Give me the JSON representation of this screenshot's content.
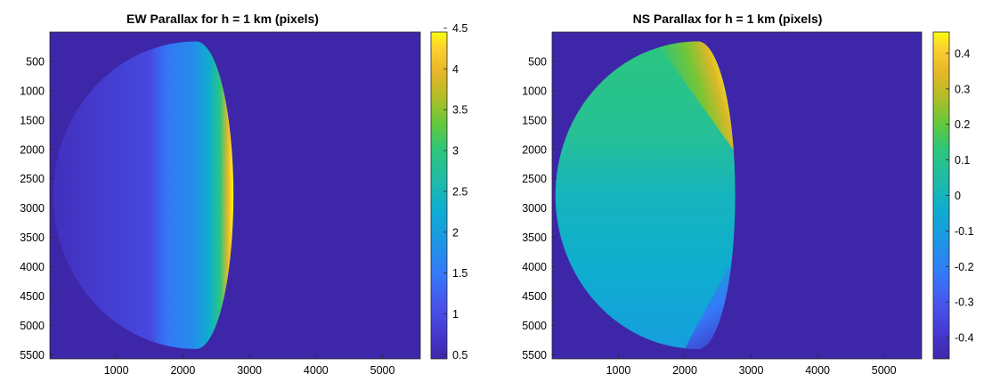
{
  "chart_data": [
    {
      "type": "heatmap",
      "title": "EW Parallax for h = 1 km (pixels)",
      "xlabel": "",
      "ylabel": "",
      "xlim": [
        1,
        5568
      ],
      "ylim": [
        1,
        5568
      ],
      "y_reversed": true,
      "x_ticks": [
        1000,
        2000,
        3000,
        4000,
        5000
      ],
      "y_ticks": [
        500,
        1000,
        1500,
        2000,
        2500,
        3000,
        3500,
        4000,
        4500,
        5000,
        5500
      ],
      "colorbar": {
        "min": 0.45,
        "max": 4.45,
        "ticks": [
          0.5,
          1,
          1.5,
          2,
          2.5,
          3,
          3.5,
          4,
          4.5
        ]
      },
      "background_value": 0.45,
      "disk": {
        "center_x": 2200,
        "center_y": 2780,
        "rx_left": 2150,
        "rx_right": 560,
        "ry": 2620
      },
      "profile": [
        {
          "x": 50,
          "v": 0.62
        },
        {
          "x": 1500,
          "v": 0.95
        },
        {
          "x": 1750,
          "v": 1.45
        },
        {
          "x": 2150,
          "v": 1.75
        },
        {
          "x": 2400,
          "v": 2.3
        },
        {
          "x": 2560,
          "v": 3.0
        },
        {
          "x": 2680,
          "v": 4.0
        },
        {
          "x": 2760,
          "v": 4.45
        }
      ],
      "grid": false,
      "colormap": "parula"
    },
    {
      "type": "heatmap",
      "title": "NS Parallax for h = 1 km (pixels)",
      "xlabel": "",
      "ylabel": "",
      "xlim": [
        1,
        5568
      ],
      "ylim": [
        1,
        5568
      ],
      "y_reversed": true,
      "x_ticks": [
        1000,
        2000,
        3000,
        4000,
        5000
      ],
      "y_ticks": [
        500,
        1000,
        1500,
        2000,
        2500,
        3000,
        3500,
        4000,
        4500,
        5000,
        5500
      ],
      "colorbar": {
        "min": -0.46,
        "max": 0.46,
        "ticks": [
          -0.4,
          -0.3,
          -0.2,
          -0.1,
          0,
          0.1,
          0.2,
          0.3,
          0.4
        ]
      },
      "background_value": -0.46,
      "disk": {
        "center_x": 2200,
        "center_y": 2780,
        "rx_left": 2150,
        "rx_right": 560,
        "ry": 2620
      },
      "profile_description_values": {
        "center": 0.0,
        "north_limb_max": 0.45,
        "south_limb_min": -0.45
      },
      "grid": false,
      "colormap": "parula"
    }
  ]
}
